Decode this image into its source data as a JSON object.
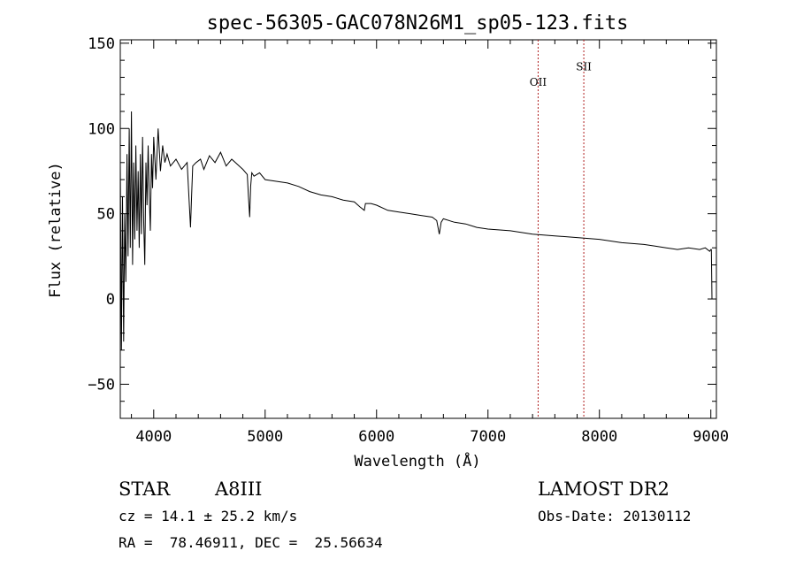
{
  "chart_data": {
    "type": "line",
    "title": "spec-56305-GAC078N26M1_sp05-123.fits",
    "xlabel": "Wavelength (Å)",
    "ylabel": "Flux (relative)",
    "xlim": [
      3700,
      9050
    ],
    "ylim": [
      -70,
      152
    ],
    "xticks": [
      4000,
      5000,
      6000,
      7000,
      8000,
      9000
    ],
    "yticks": [
      -50,
      0,
      50,
      100,
      150
    ],
    "grid": false,
    "series": [
      {
        "color": "#000000",
        "x": [
          3700,
          3710,
          3720,
          3730,
          3740,
          3750,
          3760,
          3770,
          3780,
          3790,
          3800,
          3810,
          3820,
          3830,
          3840,
          3850,
          3860,
          3870,
          3880,
          3890,
          3900,
          3910,
          3920,
          3930,
          3940,
          3950,
          3960,
          3970,
          3980,
          3990,
          4000,
          4020,
          4040,
          4060,
          4080,
          4100,
          4120,
          4150,
          4200,
          4250,
          4300,
          4330,
          4340,
          4350,
          4380,
          4420,
          4450,
          4500,
          4550,
          4600,
          4650,
          4700,
          4750,
          4800,
          4840,
          4850,
          4861,
          4870,
          4880,
          4900,
          4950,
          5000,
          5100,
          5200,
          5300,
          5400,
          5500,
          5600,
          5700,
          5800,
          5850,
          5890,
          5900,
          5950,
          6000,
          6100,
          6200,
          6300,
          6400,
          6500,
          6540,
          6563,
          6580,
          6600,
          6700,
          6800,
          6900,
          7000,
          7200,
          7400,
          7600,
          7800,
          8000,
          8200,
          8400,
          8500,
          8600,
          8700,
          8800,
          8900,
          8950,
          8990,
          9000,
          9005,
          9010
        ],
        "y": [
          80,
          -30,
          60,
          -25,
          50,
          10,
          85,
          25,
          100,
          30,
          110,
          20,
          80,
          35,
          90,
          40,
          75,
          30,
          85,
          38,
          95,
          45,
          20,
          80,
          55,
          90,
          60,
          40,
          85,
          65,
          95,
          70,
          100,
          75,
          90,
          80,
          85,
          78,
          82,
          76,
          80,
          42,
          60,
          78,
          80,
          82,
          76,
          84,
          80,
          86,
          78,
          82,
          79,
          76,
          73,
          60,
          48,
          66,
          74,
          72,
          74,
          70,
          69,
          68,
          66,
          63,
          61,
          60,
          58,
          57,
          54,
          52,
          56,
          56,
          55,
          52,
          51,
          50,
          49,
          48,
          46,
          38,
          45,
          47,
          45,
          44,
          42,
          41,
          40,
          38,
          37,
          36,
          35,
          33,
          32,
          31,
          30,
          29,
          30,
          29,
          30,
          28,
          29,
          29,
          0
        ]
      }
    ],
    "annotations": [
      {
        "label": "OII",
        "x": 7450,
        "label_y": 125
      },
      {
        "label": "SII",
        "x": 7860,
        "label_y": 134
      }
    ]
  },
  "footer": {
    "object_class": "STAR",
    "subclass": "A8III",
    "survey": "LAMOST DR2",
    "cz": "cz = 14.1 ± 25.2 km/s",
    "obs_date": "Obs-Date: 20130112",
    "coords": "RA =  78.46911, DEC =  25.56634"
  }
}
